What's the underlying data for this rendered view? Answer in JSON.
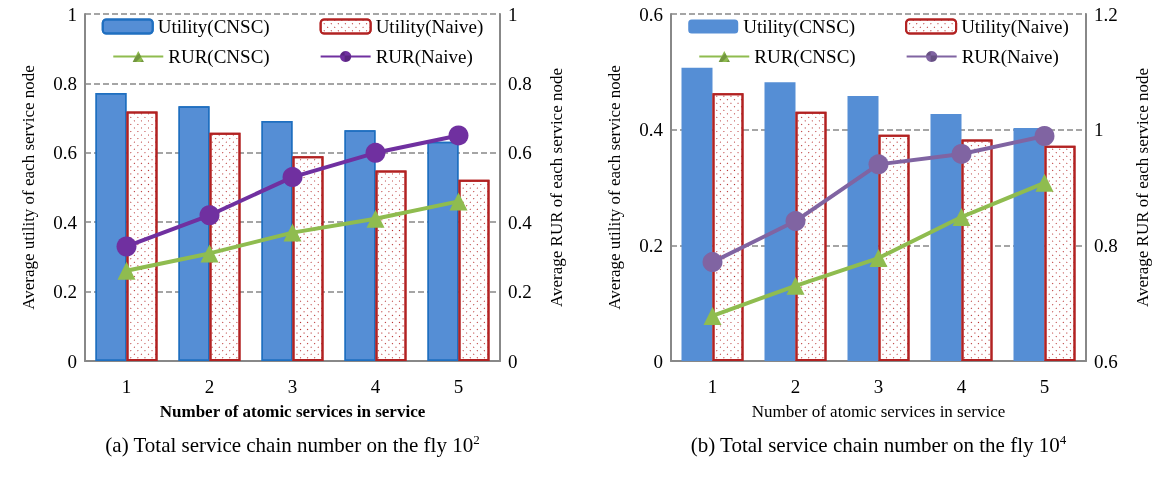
{
  "chart_data": [
    {
      "type": "bar",
      "title": "(a) Total service chain number on the fly 10$^{2}$",
      "xlabel": "Number of atomic services in service",
      "ylabel": "Average utility of each service node",
      "y2label": "Average RUR of each service node",
      "categories": [
        "1",
        "2",
        "3",
        "4",
        "5"
      ],
      "series": [
        {
          "name": "Utility(CNSC)",
          "color": "#558ed5",
          "values": [
            0.772,
            0.734,
            0.692,
            0.665,
            0.632
          ]
        },
        {
          "name": "Utility(Naive)",
          "color": "#b22222",
          "values": [
            0.719,
            0.658,
            0.59,
            0.549,
            0.522
          ]
        },
        {
          "name": "RUR(CNSC)",
          "type": "line",
          "axis": "y2",
          "marker": "triangle",
          "color": "#8fbc4f",
          "values": [
            0.26,
            0.31,
            0.37,
            0.41,
            0.46
          ]
        },
        {
          "name": "RUR(Naive)",
          "type": "line",
          "axis": "y2",
          "marker": "circle",
          "color": "#7030a0",
          "values": [
            0.33,
            0.42,
            0.53,
            0.6,
            0.65
          ]
        }
      ],
      "ylim": [
        0,
        1
      ],
      "yticks": [
        0,
        0.2,
        0.4,
        0.6,
        0.8,
        1
      ],
      "y2lim": [
        0,
        1
      ],
      "y2ticks": [
        0,
        0.2,
        0.4,
        0.6,
        0.8,
        1
      ],
      "grid": "y",
      "legend": "top",
      "line_style": "solid"
    },
    {
      "type": "bar",
      "title": "(b) Total service chain number on the fly 10$^{4}$",
      "xlabel": "Number of atomic services in service",
      "ylabel": "Average utility of each service node",
      "y2label": "Average RUR of each service node",
      "categories": [
        "1",
        "2",
        "3",
        "4",
        "5"
      ],
      "series": [
        {
          "name": "Utility(CNSC)",
          "color": "#558ed5",
          "values": [
            0.507,
            0.482,
            0.458,
            0.427,
            0.403
          ]
        },
        {
          "name": "Utility(Naive)",
          "color": "#b22222",
          "values": [
            0.463,
            0.431,
            0.391,
            0.383,
            0.372
          ]
        },
        {
          "name": "RUR(CNSC)",
          "type": "line",
          "axis": "y2",
          "marker": "triangle",
          "color": "#8fbc4f",
          "values": [
            0.678,
            0.73,
            0.778,
            0.849,
            0.908
          ]
        },
        {
          "name": "RUR(Naive)",
          "type": "line",
          "axis": "y2",
          "marker": "circle",
          "color": "#8064a2",
          "values": [
            0.771,
            0.842,
            0.94,
            0.958,
            0.989
          ]
        }
      ],
      "ylim": [
        0,
        0.6
      ],
      "yticks": [
        0,
        0.2,
        0.4,
        0.6
      ],
      "y2lim": [
        0.6,
        1.2
      ],
      "y2ticks": [
        0.6,
        0.8,
        1,
        1.2
      ],
      "grid": "y",
      "legend": "top",
      "line_style": "solid"
    }
  ]
}
